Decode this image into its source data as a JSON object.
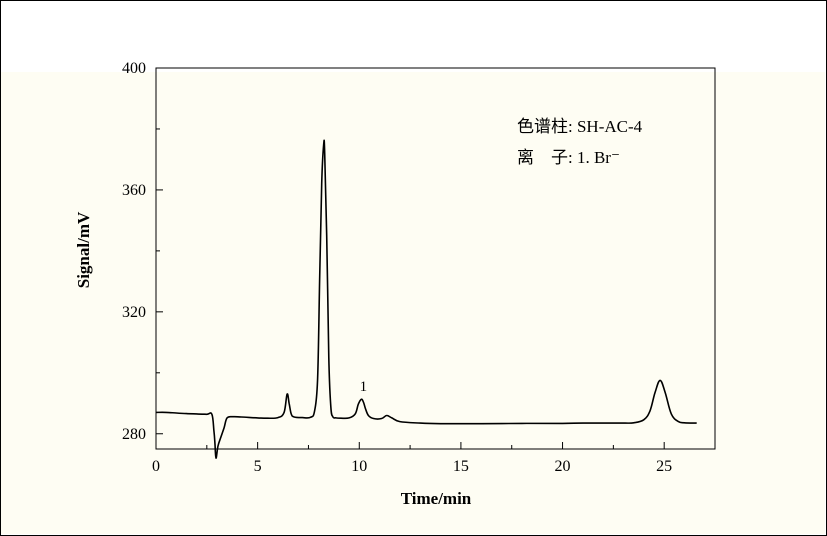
{
  "chart_data": {
    "type": "line",
    "title": "",
    "xlabel": "Time/min",
    "ylabel": "Signal/mV",
    "xlim": [
      0,
      27.5
    ],
    "ylim": [
      275,
      400
    ],
    "x_ticks": [
      "0",
      "5",
      "10",
      "15",
      "20",
      "25"
    ],
    "y_ticks": [
      "280",
      "320",
      "360",
      "400"
    ],
    "legend": {
      "column": "色谱柱: SH-AC-4",
      "ion": "离　子: 1. Br⁻"
    },
    "annotations": [
      {
        "text": "1",
        "x": 10.2
      }
    ],
    "line_color": "#000000",
    "series": [
      {
        "x": [
          0,
          0.5,
          1,
          1.5,
          2,
          2.5,
          2.75,
          2.85,
          2.9,
          2.95,
          3.05,
          3.2,
          3.35,
          3.5,
          3.8,
          4.2,
          5,
          5.5,
          6,
          6.3,
          6.45,
          6.55,
          6.65,
          6.8,
          7.2,
          7.6,
          7.8,
          7.95,
          8.05,
          8.15,
          8.25,
          8.3,
          8.4,
          8.5,
          8.6,
          8.7,
          8.85,
          9.1,
          9.5,
          9.8,
          9.95,
          10.1,
          10.2,
          10.3,
          10.45,
          10.7,
          11.1,
          11.35,
          11.6,
          12,
          13,
          14,
          16,
          18,
          20,
          21,
          22,
          23,
          23.5,
          24,
          24.3,
          24.55,
          24.8,
          25.05,
          25.35,
          25.7,
          26,
          26.6
        ],
        "y": [
          287,
          287,
          286.8,
          286.6,
          286.5,
          286.4,
          286.4,
          281,
          277,
          272,
          276,
          279,
          282,
          285.2,
          285.6,
          285.5,
          285.2,
          285.1,
          285.3,
          287,
          293,
          290,
          286.5,
          285.5,
          285.3,
          285.4,
          287.5,
          298,
          330,
          362,
          375,
          372,
          345,
          305,
          289,
          285.6,
          285.2,
          285.1,
          285.2,
          286.5,
          289.7,
          291.3,
          290.5,
          288.3,
          286,
          285,
          285,
          286,
          285.2,
          284,
          283.5,
          283.3,
          283.3,
          283.4,
          283.4,
          283.5,
          283.5,
          283.5,
          283.6,
          284.6,
          287.5,
          293.5,
          297.5,
          293.5,
          286.5,
          284,
          283.6,
          283.5
        ]
      }
    ]
  }
}
